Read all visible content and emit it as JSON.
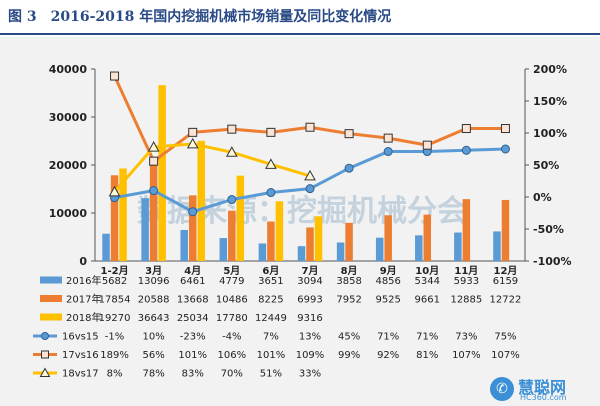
{
  "header": {
    "figure_no": "图 3",
    "title": "2016-2018 年国内挖掘机械市场销量及同比变化情况"
  },
  "watermark": "数据来源：挖掘机械分会",
  "logo": {
    "text": "慧聪网",
    "sub": "HC360.com"
  },
  "chart_data": {
    "type": "bar",
    "categories": [
      "1-2月",
      "3月",
      "4月",
      "5月",
      "6月",
      "7月",
      "8月",
      "9月",
      "10月",
      "11月",
      "12月"
    ],
    "y_left": {
      "ticks": [
        "0",
        "10000",
        "20000",
        "30000",
        "40000"
      ],
      "range": [
        0,
        40000
      ]
    },
    "y_right": {
      "ticks": [
        "-100%",
        "-50%",
        "0%",
        "50%",
        "100%",
        "150%",
        "200%"
      ],
      "range": [
        -100,
        200
      ]
    },
    "bar_series": [
      {
        "name": "2016年",
        "color": "#5b9bd5",
        "values": [
          5682,
          13096,
          6461,
          4779,
          3651,
          3094,
          3858,
          4856,
          5344,
          5933,
          6159
        ],
        "labels": [
          "5682",
          "13096",
          "6461",
          "4779",
          "3651",
          "3094",
          "3858",
          "4856",
          "5344",
          "5933",
          "6159"
        ]
      },
      {
        "name": "2017年",
        "color": "#ed7d31",
        "values": [
          17854,
          20588,
          13668,
          10486,
          8225,
          6993,
          7952,
          9525,
          9661,
          12885,
          12722
        ],
        "labels": [
          "17854",
          "20588",
          "13668",
          "10486",
          "8225",
          "6993",
          "7952",
          "9525",
          "9661",
          "12885",
          "12722"
        ]
      },
      {
        "name": "2018年",
        "color": "#ffc000",
        "values": [
          19270,
          36643,
          25034,
          17780,
          12449,
          9316,
          null,
          null,
          null,
          null,
          null
        ],
        "labels": [
          "19270",
          "36643",
          "25034",
          "17780",
          "12449",
          "9316",
          "",
          "",
          "",
          "",
          ""
        ]
      }
    ],
    "line_series": [
      {
        "name": "16vs15",
        "color": "#5b9bd5",
        "marker": "circle",
        "values": [
          -1,
          10,
          -23,
          -4,
          7,
          13,
          45,
          71,
          71,
          73,
          75
        ],
        "labels": [
          "-1%",
          "10%",
          "-23%",
          "-4%",
          "7%",
          "13%",
          "45%",
          "71%",
          "71%",
          "73%",
          "75%"
        ]
      },
      {
        "name": "17vs16",
        "color": "#ed7d31",
        "marker": "square",
        "values": [
          189,
          56,
          101,
          106,
          101,
          109,
          99,
          92,
          81,
          107,
          107
        ],
        "labels": [
          "189%",
          "56%",
          "101%",
          "106%",
          "101%",
          "109%",
          "99%",
          "92%",
          "81%",
          "107%",
          "107%"
        ]
      },
      {
        "name": "18vs17",
        "color": "#ffc000",
        "marker": "triangle",
        "values": [
          8,
          78,
          83,
          70,
          51,
          33,
          null,
          null,
          null,
          null,
          null
        ],
        "labels": [
          "8%",
          "78%",
          "83%",
          "70%",
          "51%",
          "33%",
          "",
          "",
          "",
          "",
          ""
        ]
      }
    ]
  }
}
